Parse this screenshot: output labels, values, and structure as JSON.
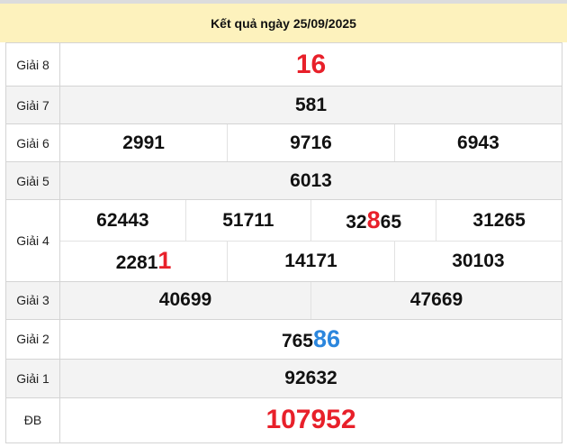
{
  "header": {
    "title": "Kết quả ngày 25/09/2025"
  },
  "colors": {
    "red": "#e8202a",
    "blue": "#2b86dd",
    "header_bg": "#fdf2bd"
  },
  "prizes": {
    "g8": {
      "label": "Giải 8",
      "numbers": [
        {
          "pre": "16"
        }
      ]
    },
    "g7": {
      "label": "Giải 7",
      "numbers": [
        {
          "pre": "581"
        }
      ]
    },
    "g6": {
      "label": "Giải 6",
      "numbers": [
        {
          "pre": "2991"
        },
        {
          "pre": "9716"
        },
        {
          "pre": "6943"
        }
      ]
    },
    "g5": {
      "label": "Giải 5",
      "numbers": [
        {
          "pre": "6013"
        }
      ]
    },
    "g4": {
      "label": "Giải 4",
      "numbers": [
        {
          "pre": "62443"
        },
        {
          "pre": "51711"
        },
        {
          "pre": "32",
          "hl": "8",
          "post": "65"
        },
        {
          "pre": "31265"
        },
        {
          "pre": "2281",
          "hl": "1"
        },
        {
          "pre": "14171"
        },
        {
          "pre": "30103"
        }
      ]
    },
    "g3": {
      "label": "Giải 3",
      "numbers": [
        {
          "pre": "40699"
        },
        {
          "pre": "47669"
        }
      ]
    },
    "g2": {
      "label": "Giải 2",
      "numbers": [
        {
          "pre": "765",
          "hl": "86"
        }
      ]
    },
    "g1": {
      "label": "Giải 1",
      "numbers": [
        {
          "pre": "92632"
        }
      ]
    },
    "db": {
      "label": "ĐB",
      "numbers": [
        {
          "pre": "107952"
        }
      ]
    }
  }
}
